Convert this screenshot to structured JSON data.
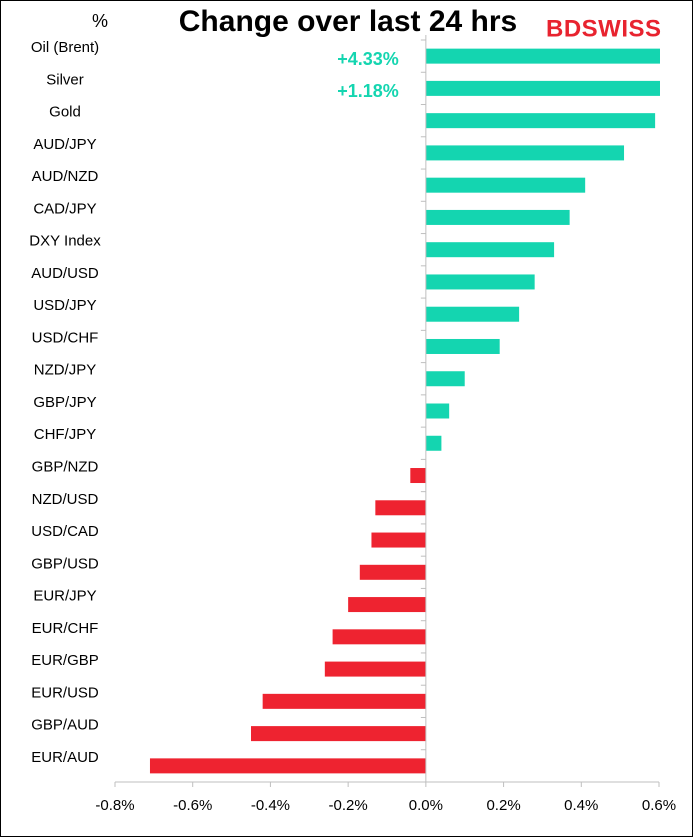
{
  "chart_data": {
    "type": "barh",
    "title": "Change over last 24 hrs",
    "unit_label": "%",
    "logo": "BDSWISS",
    "categories": [
      "Oil (Brent)",
      "Silver",
      "Gold",
      "AUD/JPY",
      "AUD/NZD",
      "CAD/JPY",
      "DXY Index",
      "AUD/USD",
      "USD/JPY",
      "USD/CHF",
      "NZD/JPY",
      "GBP/JPY",
      "CHF/JPY",
      "GBP/NZD",
      "NZD/USD",
      "USD/CAD",
      "GBP/USD",
      "EUR/JPY",
      "EUR/CHF",
      "EUR/GBP",
      "EUR/USD",
      "GBP/AUD",
      "EUR/AUD"
    ],
    "values": [
      4.33,
      1.18,
      0.59,
      0.51,
      0.41,
      0.37,
      0.33,
      0.28,
      0.24,
      0.19,
      0.1,
      0.06,
      0.04,
      -0.04,
      -0.13,
      -0.14,
      -0.17,
      -0.2,
      -0.24,
      -0.26,
      -0.42,
      -0.45,
      -0.71
    ],
    "value_labels": [
      "+4.33%",
      "+1.18%",
      null,
      null,
      null,
      null,
      null,
      null,
      null,
      null,
      null,
      null,
      null,
      null,
      null,
      null,
      null,
      null,
      null,
      null,
      null,
      null,
      null
    ],
    "positive_color": "#14d5b0",
    "negative_color": "#ee2330",
    "xlim": [
      -0.8,
      0.6
    ],
    "xticks": [
      {
        "value": -0.8,
        "label": "-0.8%"
      },
      {
        "value": -0.6,
        "label": "-0.6%"
      },
      {
        "value": -0.4,
        "label": "-0.4%"
      },
      {
        "value": -0.2,
        "label": "-0.2%"
      },
      {
        "value": 0,
        "label": "0.0%"
      },
      {
        "value": 0.2,
        "label": "0.2%"
      },
      {
        "value": 0.4,
        "label": "0.4%"
      },
      {
        "value": 0.6,
        "label": "0.6%"
      }
    ]
  }
}
